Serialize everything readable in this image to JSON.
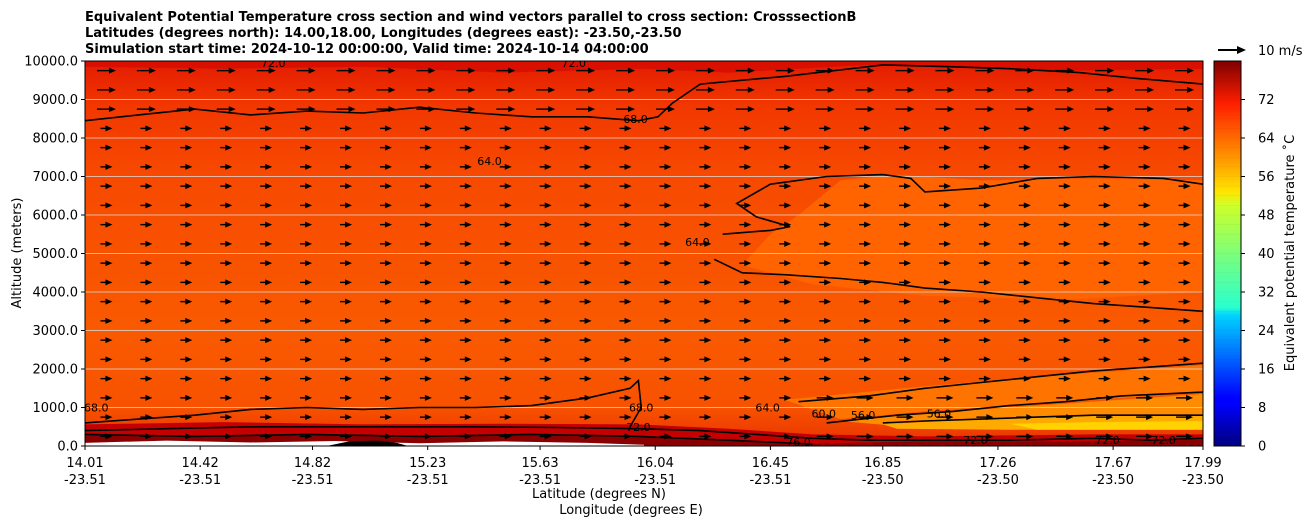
{
  "chart_data": {
    "type": "contour",
    "title_lines": [
      "Equivalent Potential Temperature cross section and wind vectors parallel to cross section: CrosssectionB",
      "Latitudes (degrees north): 14.00,18.00, Longitudes (degrees east): -23.50,-23.50",
      "Simulation start time: 2024-10-12 00:00:00, Valid time: 2024-10-14 04:00:00"
    ],
    "xlabel_lat": "Latitude (degrees N)",
    "xlabel_lon": "Longitude (degrees E)",
    "ylabel": "Altitude (meters)",
    "x_range": [
      14.01,
      17.99
    ],
    "ylim": [
      0,
      10000
    ],
    "x_ticks": [
      {
        "lat": "14.01",
        "lon": "-23.51",
        "value": 14.01
      },
      {
        "lat": "14.42",
        "lon": "-23.51",
        "value": 14.42
      },
      {
        "lat": "14.82",
        "lon": "-23.51",
        "value": 14.82
      },
      {
        "lat": "15.23",
        "lon": "-23.51",
        "value": 15.23
      },
      {
        "lat": "15.63",
        "lon": "-23.51",
        "value": 15.63
      },
      {
        "lat": "16.04",
        "lon": "-23.51",
        "value": 16.04
      },
      {
        "lat": "16.45",
        "lon": "-23.51",
        "value": 16.45
      },
      {
        "lat": "16.85",
        "lon": "-23.50",
        "value": 16.85
      },
      {
        "lat": "17.26",
        "lon": "-23.50",
        "value": 17.26
      },
      {
        "lat": "17.67",
        "lon": "-23.50",
        "value": 17.67
      },
      {
        "lat": "17.99",
        "lon": "-23.50",
        "value": 17.99
      }
    ],
    "y_ticks": [
      "0.0",
      "1000.0",
      "2000.0",
      "3000.0",
      "4000.0",
      "5000.0",
      "6000.0",
      "7000.0",
      "8000.0",
      "9000.0",
      "10000.0"
    ],
    "y_tick_values": [
      0,
      1000,
      2000,
      3000,
      4000,
      5000,
      6000,
      7000,
      8000,
      9000,
      10000
    ],
    "grid": "horizontal",
    "colorbar": {
      "label": "Equivalent potential temperature $^\\circ$C",
      "label_text": "Equivalent potential temperature ˚C",
      "ticks": [
        "0",
        "8",
        "16",
        "24",
        "32",
        "40",
        "48",
        "56",
        "64",
        "72"
      ],
      "tick_values": [
        0,
        8,
        16,
        24,
        32,
        40,
        48,
        56,
        64,
        72
      ],
      "range": [
        0,
        80
      ],
      "colormap": "jet"
    },
    "quiver_key": {
      "label": "10 m/s"
    },
    "contour_labels": [
      {
        "text": "72.0",
        "x": 14.68,
        "y": 9950
      },
      {
        "text": "72.0",
        "x": 15.75,
        "y": 9950
      },
      {
        "text": "68.0",
        "x": 15.97,
        "y": 8500
      },
      {
        "text": "64.0",
        "x": 15.45,
        "y": 7400
      },
      {
        "text": "64.0",
        "x": 16.19,
        "y": 5300
      },
      {
        "text": "68.0",
        "x": 14.05,
        "y": 1000
      },
      {
        "text": "68.0",
        "x": 15.99,
        "y": 1000
      },
      {
        "text": "72.0",
        "x": 15.98,
        "y": 500
      },
      {
        "text": "64.0",
        "x": 16.44,
        "y": 1000
      },
      {
        "text": "60.0",
        "x": 16.64,
        "y": 850
      },
      {
        "text": "56.0",
        "x": 16.78,
        "y": 800
      },
      {
        "text": "56.0",
        "x": 17.05,
        "y": 850
      },
      {
        "text": "72.0",
        "x": 17.18,
        "y": 150
      },
      {
        "text": "72.0",
        "x": 17.65,
        "y": 150
      },
      {
        "text": "72.0",
        "x": 17.85,
        "y": 150
      },
      {
        "text": "76.0",
        "x": 16.55,
        "y": 100
      }
    ],
    "series": [
      {
        "level": 64,
        "points": [
          [
            14.01,
            8450
          ],
          [
            14.2,
            8600
          ],
          [
            14.4,
            8750
          ],
          [
            14.6,
            8600
          ],
          [
            14.8,
            8700
          ],
          [
            15.0,
            8650
          ],
          [
            15.2,
            8800
          ],
          [
            15.4,
            8650
          ],
          [
            15.6,
            8550
          ],
          [
            15.8,
            8550
          ],
          [
            15.98,
            8450
          ],
          [
            16.05,
            8550
          ],
          [
            16.1,
            8900
          ],
          [
            16.2,
            9400
          ],
          [
            16.5,
            9600
          ],
          [
            16.85,
            9900
          ],
          [
            17.1,
            9850
          ],
          [
            17.3,
            9800
          ],
          [
            17.55,
            9700
          ],
          [
            17.75,
            9550
          ],
          [
            17.99,
            9400
          ]
        ]
      },
      {
        "level": 64,
        "points": [
          [
            16.25,
            4850
          ],
          [
            16.35,
            4500
          ],
          [
            16.5,
            4450
          ],
          [
            16.7,
            4350
          ],
          [
            16.85,
            4250
          ],
          [
            17.0,
            4100
          ],
          [
            17.2,
            4000
          ],
          [
            17.4,
            3850
          ],
          [
            17.6,
            3700
          ],
          [
            17.8,
            3600
          ],
          [
            17.99,
            3500
          ]
        ]
      },
      {
        "level": 64,
        "points": [
          [
            16.28,
            5500
          ],
          [
            16.45,
            5600
          ],
          [
            16.52,
            5700
          ],
          [
            16.4,
            5950
          ],
          [
            16.33,
            6300
          ],
          [
            16.45,
            6800
          ],
          [
            16.65,
            7000
          ],
          [
            16.85,
            7050
          ],
          [
            16.95,
            6950
          ],
          [
            17.0,
            6600
          ],
          [
            17.2,
            6700
          ],
          [
            17.4,
            6950
          ],
          [
            17.6,
            7000
          ],
          [
            17.85,
            6950
          ],
          [
            17.99,
            6800
          ]
        ]
      },
      {
        "level": 68,
        "points": [
          [
            14.01,
            600
          ],
          [
            14.2,
            700
          ],
          [
            14.4,
            800
          ],
          [
            14.6,
            950
          ],
          [
            14.8,
            1000
          ],
          [
            15.0,
            950
          ],
          [
            15.2,
            1000
          ],
          [
            15.4,
            1000
          ],
          [
            15.6,
            1050
          ],
          [
            15.8,
            1250
          ],
          [
            15.95,
            1500
          ],
          [
            15.98,
            1700
          ],
          [
            15.99,
            1000
          ],
          [
            15.95,
            500
          ]
        ]
      },
      {
        "level": 64,
        "points": [
          [
            16.55,
            1150
          ],
          [
            16.8,
            1300
          ],
          [
            17.0,
            1500
          ],
          [
            17.2,
            1650
          ],
          [
            17.4,
            1800
          ],
          [
            17.6,
            1950
          ],
          [
            17.8,
            2050
          ],
          [
            17.99,
            2150
          ]
        ]
      },
      {
        "level": 60,
        "points": [
          [
            16.65,
            600
          ],
          [
            16.9,
            800
          ],
          [
            17.1,
            900
          ],
          [
            17.3,
            1050
          ],
          [
            17.5,
            1150
          ],
          [
            17.7,
            1300
          ],
          [
            17.99,
            1400
          ]
        ]
      },
      {
        "level": 56,
        "points": [
          [
            16.85,
            600
          ],
          [
            17.0,
            650
          ],
          [
            17.2,
            700
          ],
          [
            17.4,
            750
          ],
          [
            17.6,
            800
          ],
          [
            17.99,
            800
          ]
        ]
      },
      {
        "level": 72,
        "points": [
          [
            14.01,
            400
          ],
          [
            14.3,
            450
          ],
          [
            14.6,
            500
          ],
          [
            15.0,
            500
          ],
          [
            15.4,
            500
          ],
          [
            15.7,
            480
          ],
          [
            15.98,
            450
          ],
          [
            16.2,
            400
          ],
          [
            16.4,
            300
          ],
          [
            16.6,
            200
          ],
          [
            16.8,
            150
          ],
          [
            17.0,
            150
          ],
          [
            17.3,
            150
          ],
          [
            17.6,
            200
          ],
          [
            17.8,
            150
          ],
          [
            17.99,
            200
          ]
        ]
      },
      {
        "level": 76,
        "points": [
          [
            14.01,
            300
          ],
          [
            14.4,
            250
          ],
          [
            14.8,
            300
          ],
          [
            15.2,
            250
          ],
          [
            15.6,
            300
          ],
          [
            15.98,
            250
          ],
          [
            16.3,
            150
          ],
          [
            16.6,
            50
          ]
        ]
      }
    ]
  }
}
